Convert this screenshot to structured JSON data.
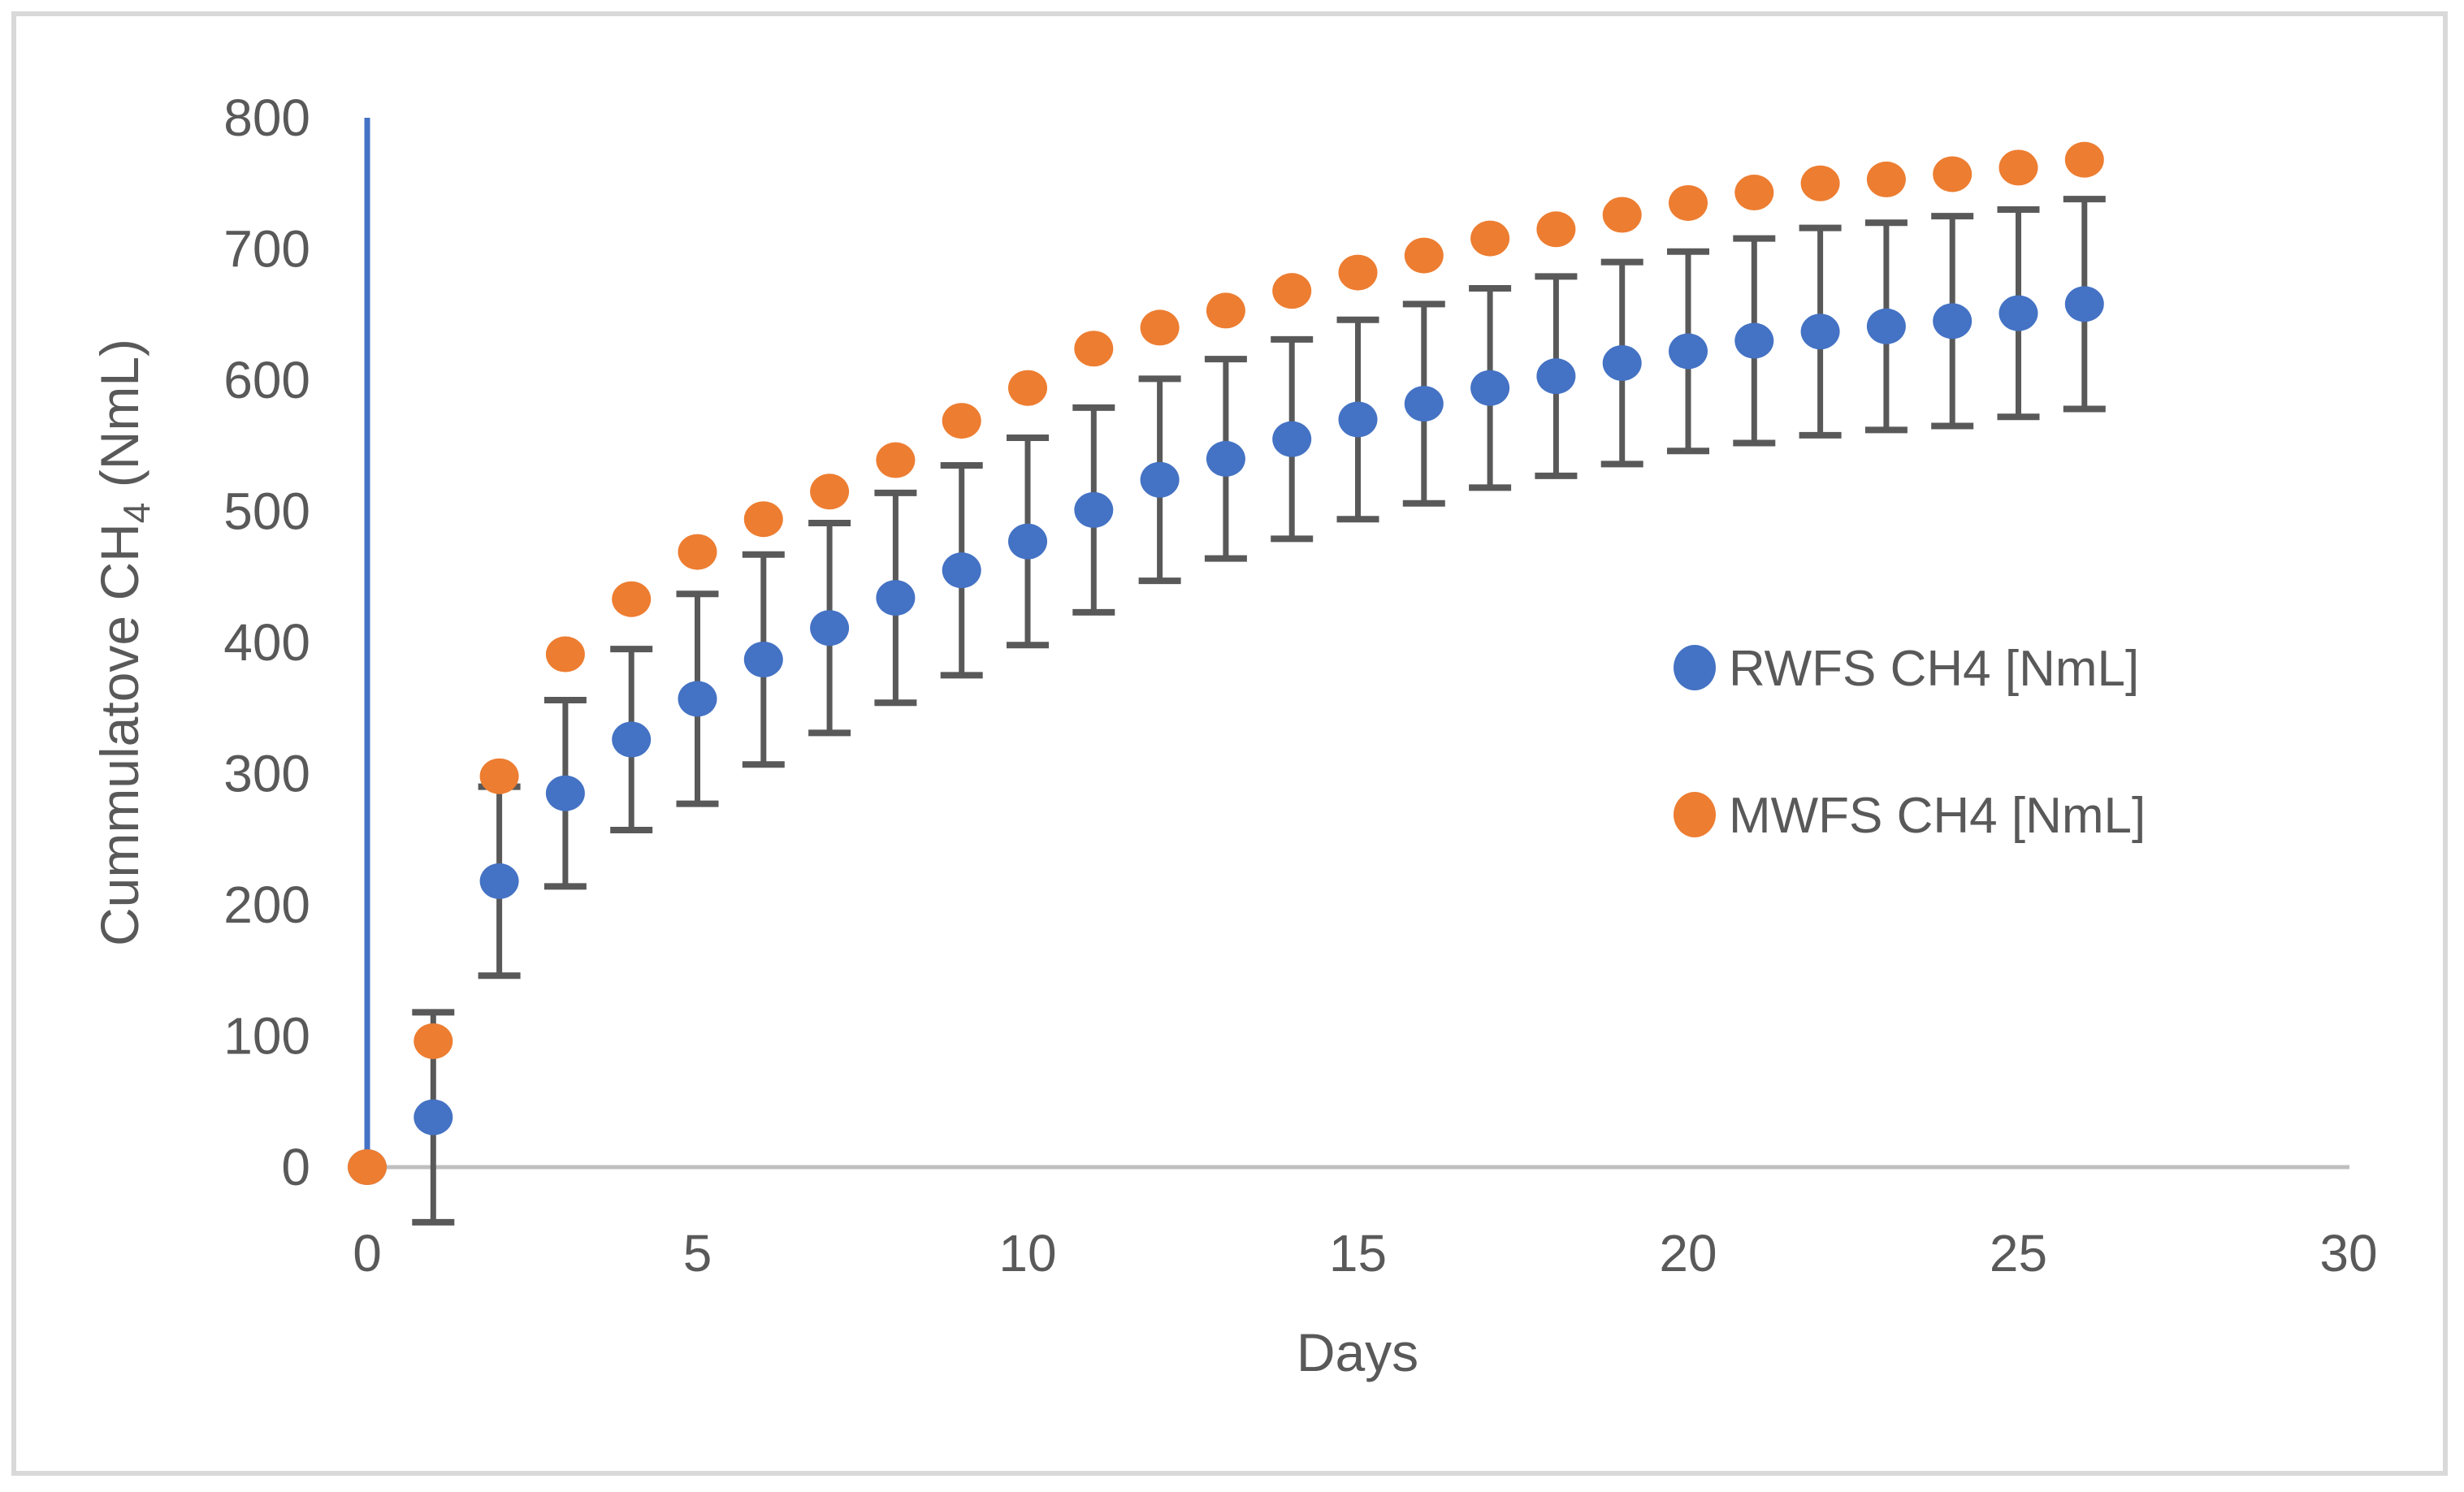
{
  "figure": {
    "background": "#ffffff",
    "border_color": "#d9d9d9"
  },
  "colors": {
    "rwfs": "#4472C4",
    "mwfs": "#ED7D31",
    "error_bar": "#595959",
    "axis_line": "#bfbfbf",
    "text": "#595959"
  },
  "legend": {
    "items": [
      {
        "label": "RWFS CH4 [NmL]",
        "color_key": "rwfs"
      },
      {
        "label": "MWFS CH4 [NmL]",
        "color_key": "mwfs"
      }
    ]
  },
  "chart_data": {
    "type": "scatter",
    "title": "",
    "xlabel": "Days",
    "ylabel": "Cummulatove CH4 (NmL)",
    "ylabel_parts": {
      "main": "Cummulatove CH",
      "sub": "4",
      "rest": " (NmL)"
    },
    "xlim": [
      0,
      30
    ],
    "ylim": [
      0,
      800
    ],
    "x_ticks": [
      0,
      5,
      10,
      15,
      20,
      25,
      30
    ],
    "y_ticks": [
      0,
      100,
      200,
      300,
      400,
      500,
      600,
      700,
      800
    ],
    "grid": false,
    "legend_position": "middle-right",
    "annotations": {
      "vertical_line": {
        "x": 0,
        "y_from": 0,
        "y_to": 800,
        "color_key": "rwfs"
      }
    },
    "x": [
      0,
      1,
      2,
      3,
      4,
      5,
      6,
      7,
      8,
      9,
      10,
      11,
      12,
      13,
      14,
      15,
      16,
      17,
      18,
      19,
      20,
      21,
      22,
      23,
      24,
      25,
      26
    ],
    "series": [
      {
        "name": "RWFS CH4 [NmL]",
        "color_key": "rwfs",
        "values": [
          0,
          38,
          218,
          285,
          326,
          357,
          387,
          411,
          434,
          455,
          477,
          501,
          524,
          540,
          555,
          570,
          582,
          594,
          603,
          613,
          622,
          630,
          637,
          641,
          645,
          651,
          658
        ],
        "error": [
          0,
          80,
          72,
          71,
          69,
          80,
          80,
          80,
          80,
          80,
          79,
          78,
          77,
          76,
          76,
          76,
          76,
          76,
          76,
          77,
          76,
          78,
          79,
          79,
          80,
          79,
          80
        ],
        "has_error_bars": true
      },
      {
        "name": "MWFS CH4 [NmL]",
        "color_key": "mwfs",
        "values": [
          0,
          96,
          298,
          391,
          433,
          469,
          494,
          515,
          539,
          569,
          594,
          624,
          640,
          653,
          668,
          682,
          695,
          708,
          715,
          726,
          735,
          743,
          750,
          753,
          757,
          762,
          768
        ],
        "error": [],
        "has_error_bars": false
      }
    ]
  }
}
